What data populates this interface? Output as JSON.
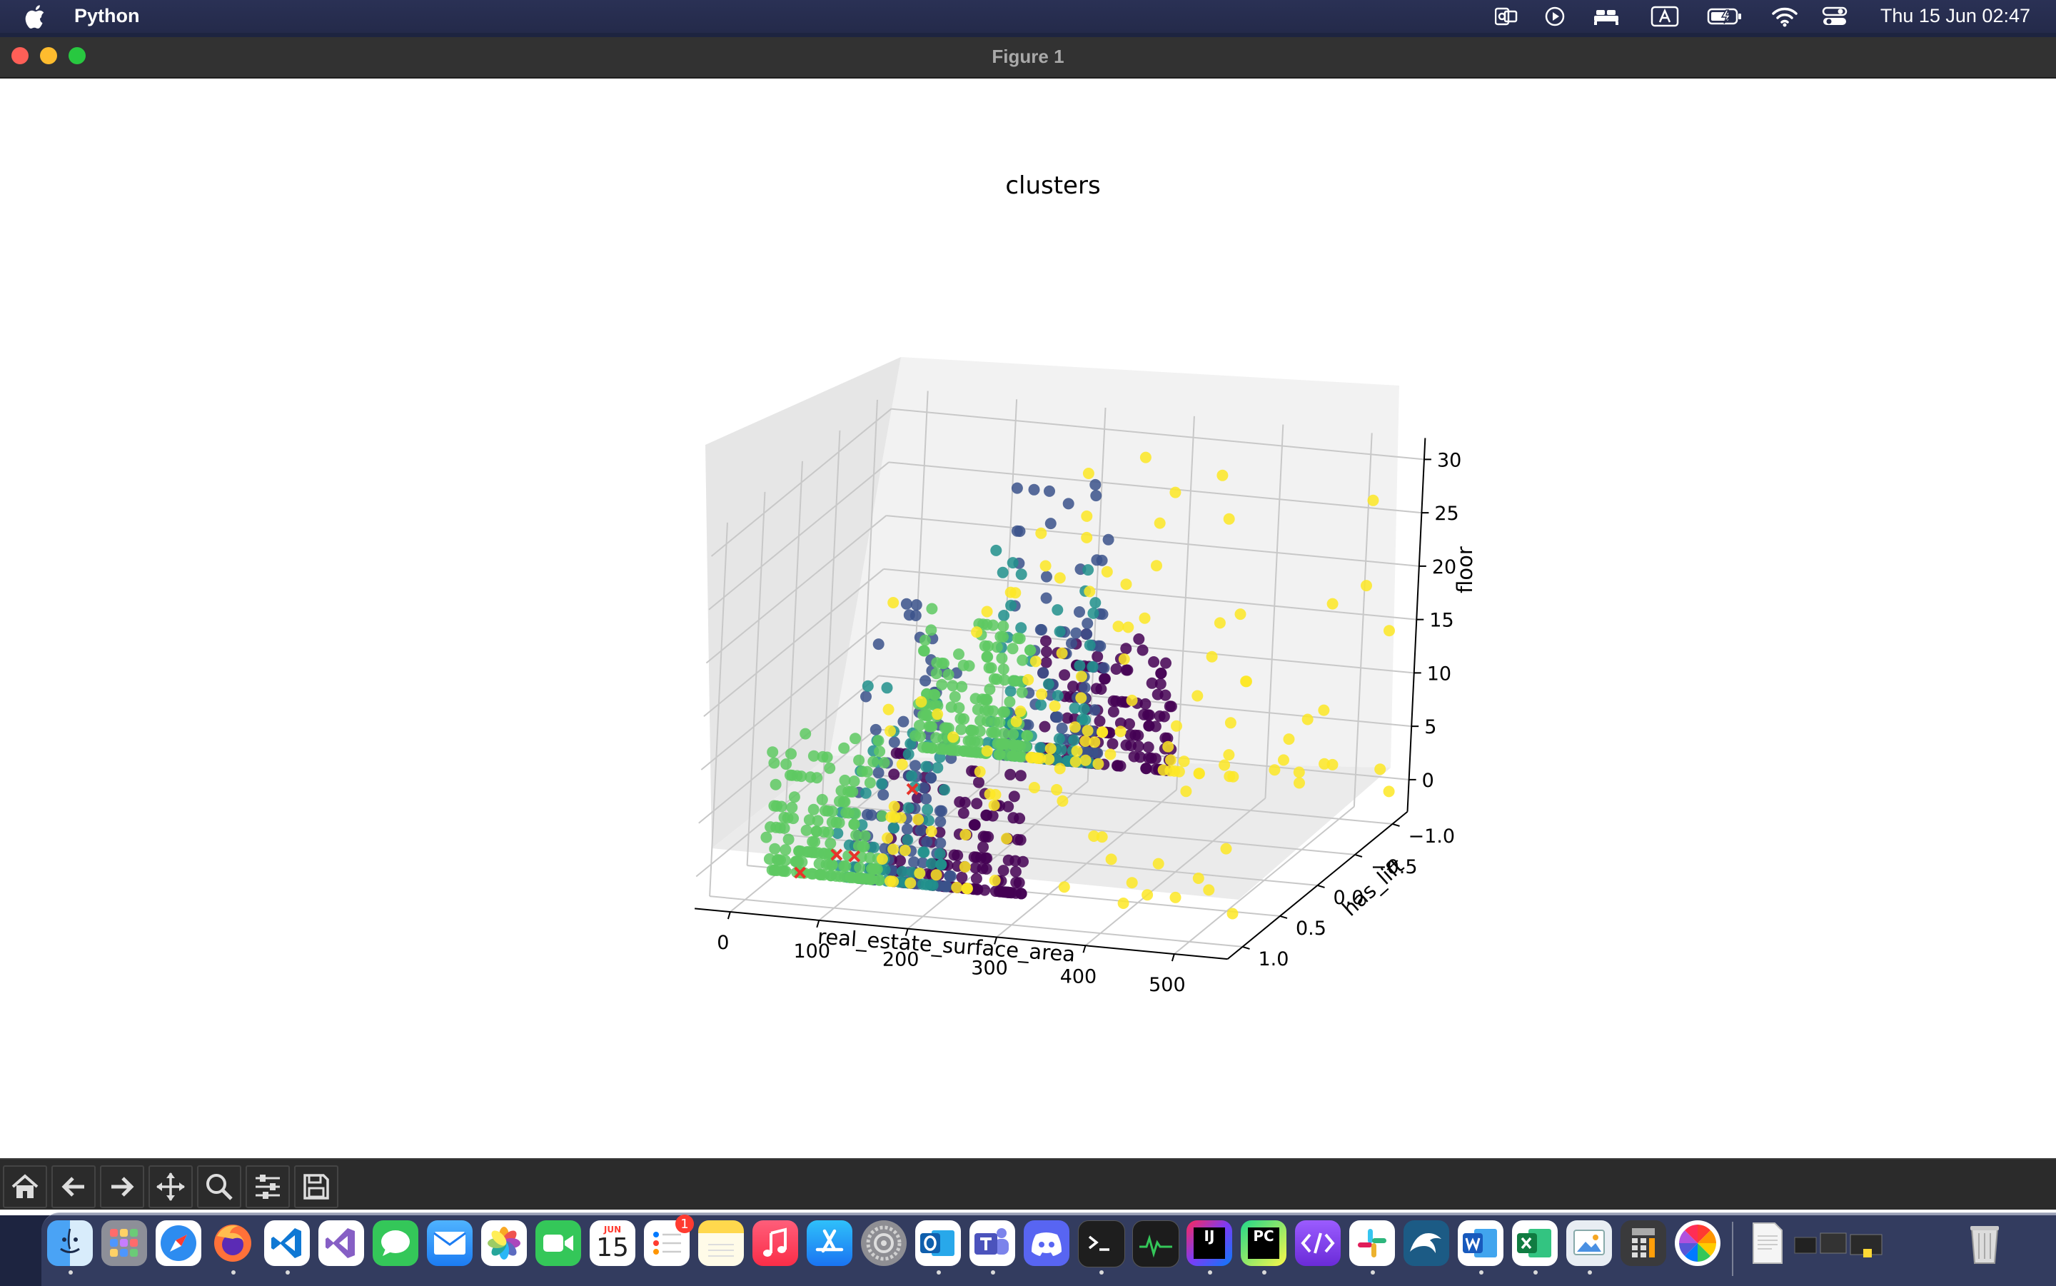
{
  "menubar": {
    "app_name": "Python",
    "clock": "Thu 15 Jun  02:47",
    "status_icons": [
      "outlook-icon",
      "play-icon",
      "bed-icon",
      "keyboard-input-icon",
      "battery-icon",
      "wifi-icon",
      "control-center-icon"
    ]
  },
  "window": {
    "title": "Figure 1"
  },
  "chart_data": {
    "type": "scatter",
    "projection": "3d",
    "title": "clusters",
    "xlabel": "real_estate_surface_area",
    "ylabel": "has_lift",
    "zlabel": "floor",
    "xlim": [
      0,
      550
    ],
    "ylim": [
      -1.2,
      1.2
    ],
    "zlim": [
      -3,
      32
    ],
    "xticks": [
      "0",
      "100",
      "200",
      "300",
      "400",
      "500"
    ],
    "yticks": [
      "−1.0",
      "−0.5",
      "0.0",
      "0.5",
      "1.0"
    ],
    "zticks": [
      "0",
      "5",
      "10",
      "15",
      "20",
      "25",
      "30"
    ],
    "grid": true,
    "colormap": "viridis",
    "clusters": [
      {
        "color": "#440154",
        "x_range": [
          160,
          310
        ],
        "z_range": [
          0,
          12
        ]
      },
      {
        "color": "#3b528b",
        "x_range": [
          120,
          230
        ],
        "z_range": [
          0,
          27
        ]
      },
      {
        "color": "#21918c",
        "x_range": [
          100,
          220
        ],
        "z_range": [
          0,
          20
        ]
      },
      {
        "color": "#5ec962",
        "x_range": [
          20,
          150
        ],
        "z_range": [
          0,
          13
        ]
      },
      {
        "color": "#fde725",
        "x_range": [
          150,
          560
        ],
        "z_range": [
          0,
          30
        ]
      }
    ],
    "centroids": {
      "marker": "x",
      "color": "#e8332b",
      "points": [
        {
          "x": 20,
          "y": -1,
          "z": -4
        },
        {
          "x": 60,
          "y": 1,
          "z": 0
        },
        {
          "x": 100,
          "y": 1,
          "z": 2
        },
        {
          "x": 120,
          "y": 1,
          "z": 2
        }
      ]
    }
  },
  "toolbar": {
    "buttons": [
      "home-icon",
      "back-arrow-icon",
      "forward-arrow-icon",
      "pan-icon",
      "zoom-icon",
      "configure-subplots-icon",
      "save-icon"
    ]
  },
  "dock": {
    "calendar_month": "JUN",
    "calendar_day": "15",
    "reminders_badge": "1",
    "apps": [
      "Finder",
      "Launchpad",
      "Safari",
      "Firefox",
      "Visual Studio Code",
      "Visual Studio",
      "Messages",
      "Mail",
      "Photos",
      "FaceTime",
      "Calendar",
      "Reminders",
      "Notes",
      "Music",
      "App Store",
      "System Settings",
      "Outlook",
      "Teams",
      "Discord",
      "Terminal",
      "Activity Monitor",
      "IntelliJ IDEA",
      "PyCharm",
      "Script Editor",
      "Slack",
      "MySQL Workbench",
      "Word",
      "Excel",
      "Preview",
      "Calculator",
      "Pinwheel",
      "Python Launcher",
      "Downloads",
      "Trash"
    ]
  }
}
